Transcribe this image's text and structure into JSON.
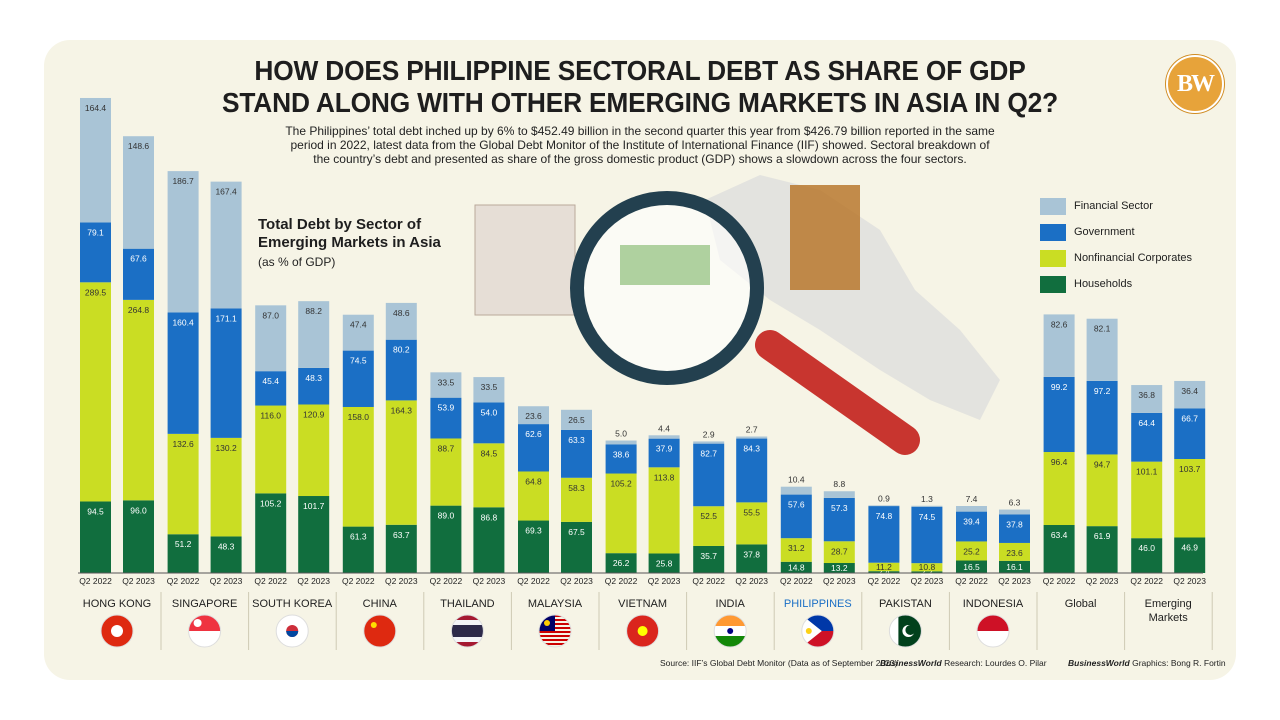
{
  "header": {
    "title_line1": "HOW DOES PHILIPPINE SECTORAL DEBT AS SHARE OF GDP",
    "title_line2": "STAND ALONG WITH OTHER EMERGING MARKETS IN ASIA IN Q2?",
    "subtitle_line1": "The Philippines’ total debt inched up by 6% to $452.49 billion in the second quarter this year from $426.79 billion reported in the same",
    "subtitle_line2": "period in 2022, latest data from the Global Debt Monitor of the Institute of International Finance (IIF) showed. Sectoral breakdown of",
    "subtitle_line3": "the country’s debt and presented as share of the gross domestic product (GDP) shows a slowdown across the four sectors.",
    "logo_text": "BW"
  },
  "chart_title": {
    "line1": "Total Debt by Sector of",
    "line2": "Emerging Markets in Asia",
    "unit": "(as % of GDP)"
  },
  "legend": [
    {
      "label": "Financial Sector",
      "color": "#a9c4d6"
    },
    {
      "label": "Government",
      "color": "#1b6fc5"
    },
    {
      "label": "Nonfinancial Corporates",
      "color": "#cadd23"
    },
    {
      "label": "Households",
      "color": "#116e3e"
    }
  ],
  "footer": {
    "source": "Source: IIF’s Global Debt Monitor (Data as of September 2023)",
    "research_brand": "BusinessWorld",
    "research_text": " Research: Lourdes O. Pilar",
    "graphics_brand": "BusinessWorld",
    "graphics_text": " Graphics: Bong R. Fortin"
  },
  "chart_data": {
    "type": "bar",
    "stacked": true,
    "series_order": [
      "Households",
      "Nonfinancial Corporates",
      "Government",
      "Financial Sector"
    ],
    "groups": [
      {
        "name": "HONG KONG",
        "flag": "hong-kong",
        "bars": [
          {
            "period": "Q2 2022",
            "households": 94.5,
            "nonfinancial": 289.5,
            "government": 79.1,
            "financial": 164.4
          },
          {
            "period": "Q2 2023",
            "households": 96.0,
            "nonfinancial": 264.8,
            "government": 67.6,
            "financial": 148.6
          }
        ]
      },
      {
        "name": "SINGAPORE",
        "flag": "singapore",
        "bars": [
          {
            "period": "Q2 2022",
            "households": 51.2,
            "nonfinancial": 132.6,
            "government": 160.4,
            "financial": 186.7
          },
          {
            "period": "Q2 2023",
            "households": 48.3,
            "nonfinancial": 130.2,
            "government": 171.1,
            "financial": 167.4
          }
        ]
      },
      {
        "name": "SOUTH KOREA",
        "flag": "south-korea",
        "bars": [
          {
            "period": "Q2 2022",
            "households": 105.2,
            "nonfinancial": 116.0,
            "government": 45.4,
            "financial": 87.0
          },
          {
            "period": "Q2 2023",
            "households": 101.7,
            "nonfinancial": 120.9,
            "government": 48.3,
            "financial": 88.2
          }
        ]
      },
      {
        "name": "CHINA",
        "flag": "china",
        "bars": [
          {
            "period": "Q2 2022",
            "households": 61.3,
            "nonfinancial": 158.0,
            "government": 74.5,
            "financial": 47.4
          },
          {
            "period": "Q2 2023",
            "households": 63.7,
            "nonfinancial": 164.3,
            "government": 80.2,
            "financial": 48.6
          }
        ]
      },
      {
        "name": "THAILAND",
        "flag": "thailand",
        "bars": [
          {
            "period": "Q2 2022",
            "households": 89.0,
            "nonfinancial": 88.7,
            "government": 53.9,
            "financial": 33.5
          },
          {
            "period": "Q2 2023",
            "households": 86.8,
            "nonfinancial": 84.5,
            "government": 54.0,
            "financial": 33.5
          }
        ]
      },
      {
        "name": "MALAYSIA",
        "flag": "malaysia",
        "bars": [
          {
            "period": "Q2 2022",
            "households": 69.3,
            "nonfinancial": 64.8,
            "government": 62.6,
            "financial": 23.6
          },
          {
            "period": "Q2 2023",
            "households": 67.5,
            "nonfinancial": 58.3,
            "government": 63.3,
            "financial": 26.5
          }
        ]
      },
      {
        "name": "VIETNAM",
        "flag": "vietnam",
        "bars": [
          {
            "period": "Q2 2022",
            "households": 26.2,
            "nonfinancial": 105.2,
            "government": 38.6,
            "financial": 5.0
          },
          {
            "period": "Q2 2023",
            "households": 25.8,
            "nonfinancial": 113.8,
            "government": 37.9,
            "financial": 4.4
          }
        ]
      },
      {
        "name": "INDIA",
        "flag": "india",
        "bars": [
          {
            "period": "Q2 2022",
            "households": 35.7,
            "nonfinancial": 52.5,
            "government": 82.7,
            "financial": 2.9
          },
          {
            "period": "Q2 2023",
            "households": 37.8,
            "nonfinancial": 55.5,
            "government": 84.3,
            "financial": 2.7
          }
        ]
      },
      {
        "name": "PHILIPPINES",
        "flag": "philippines",
        "highlight": true,
        "bars": [
          {
            "period": "Q2 2022",
            "households": 14.8,
            "nonfinancial": 31.2,
            "government": 57.6,
            "financial": 10.4
          },
          {
            "period": "Q2 2023",
            "households": 13.2,
            "nonfinancial": 28.7,
            "government": 57.3,
            "financial": 8.8
          }
        ]
      },
      {
        "name": "PAKISTAN",
        "flag": "pakistan",
        "bars": [
          {
            "period": "Q2 2022",
            "households": 2.4,
            "nonfinancial": 11.2,
            "government": 74.8,
            "financial": 0.9
          },
          {
            "period": "Q2 2023",
            "households": 2.2,
            "nonfinancial": 10.8,
            "government": 74.5,
            "financial": 1.3
          }
        ]
      },
      {
        "name": "INDONESIA",
        "flag": "indonesia",
        "bars": [
          {
            "period": "Q2 2022",
            "households": 16.5,
            "nonfinancial": 25.2,
            "government": 39.4,
            "financial": 7.4
          },
          {
            "period": "Q2 2023",
            "households": 16.1,
            "nonfinancial": 23.6,
            "government": 37.8,
            "financial": 6.3
          }
        ]
      },
      {
        "name": "Global",
        "flag": "",
        "bars": [
          {
            "period": "Q2 2022",
            "households": 63.4,
            "nonfinancial": 96.4,
            "government": 99.2,
            "financial": 82.6
          },
          {
            "period": "Q2 2023",
            "households": 61.9,
            "nonfinancial": 94.7,
            "government": 97.2,
            "financial": 82.1
          }
        ]
      },
      {
        "name": "Emerging Markets",
        "name_line1": "Emerging",
        "name_line2": "Markets",
        "flag": "",
        "bars": [
          {
            "period": "Q2 2022",
            "households": 46.0,
            "nonfinancial": 101.1,
            "government": 64.4,
            "financial": 36.8
          },
          {
            "period": "Q2 2023",
            "households": 46.9,
            "nonfinancial": 103.7,
            "government": 66.7,
            "financial": 36.4
          }
        ]
      }
    ]
  },
  "colors": {
    "financial": "#a9c4d6",
    "government": "#1b6fc5",
    "nonfinancial": "#cadd23",
    "households": "#116e3e",
    "highlight_text": "#1b6fc5"
  }
}
